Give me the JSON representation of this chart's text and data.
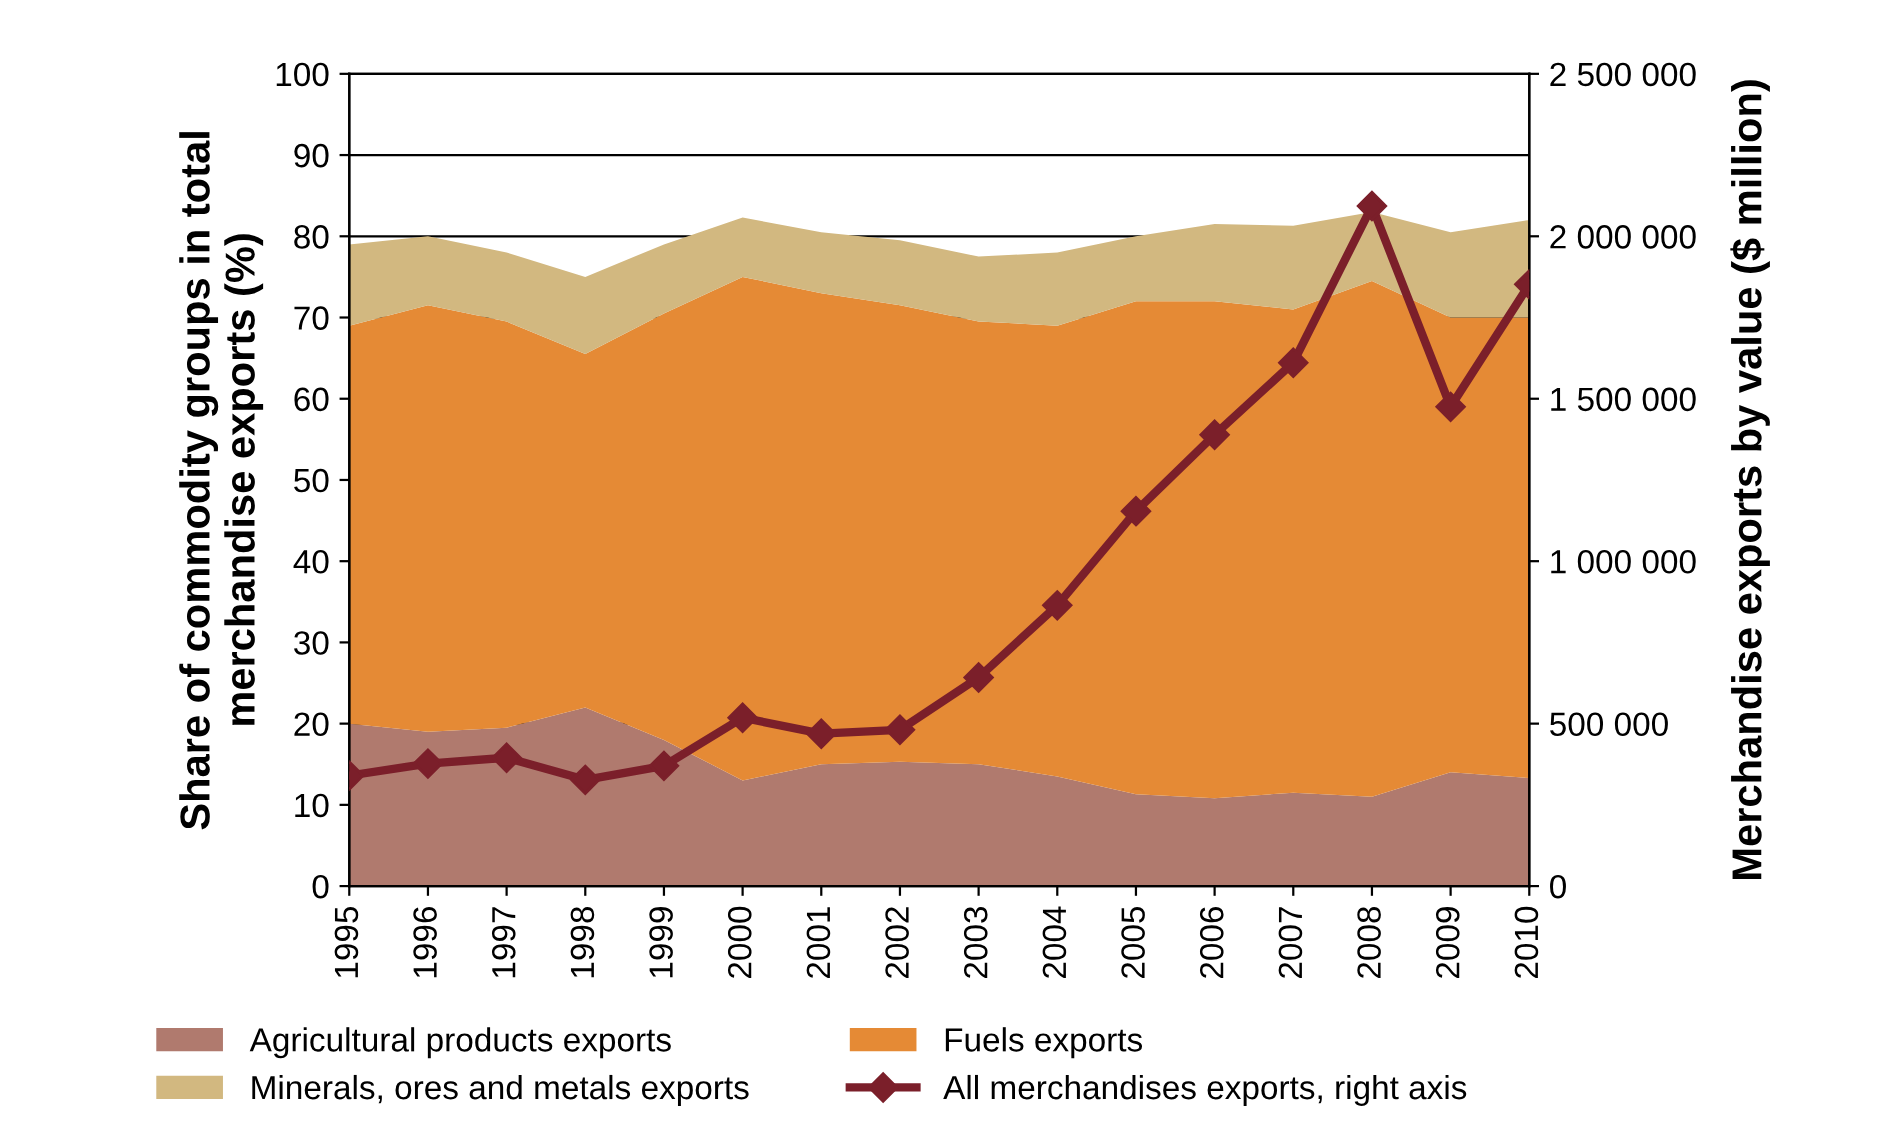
{
  "chart_data": {
    "type": "area",
    "stacked": true,
    "x": [
      1995,
      1996,
      1997,
      1998,
      1999,
      2000,
      2001,
      2002,
      2003,
      2004,
      2005,
      2006,
      2007,
      2008,
      2009,
      2010
    ],
    "xlim": [
      1995,
      2010
    ],
    "xticks": [
      1995,
      1996,
      1997,
      1998,
      1999,
      2000,
      2001,
      2002,
      2003,
      2004,
      2005,
      2006,
      2007,
      2008,
      2009,
      2010
    ],
    "ylabel": "Share of commodity groups in total merchandise exports (%)",
    "y2label": "Merchandise exports by value ($ million)",
    "ylim": [
      0,
      100
    ],
    "yticks": [
      0,
      10,
      20,
      30,
      40,
      50,
      60,
      70,
      80,
      90,
      100
    ],
    "y2lim": [
      0,
      2500000
    ],
    "y2ticks": [
      {
        "value": 0,
        "label": "0"
      },
      {
        "value": 500000,
        "label": "500 000"
      },
      {
        "value": 1000000,
        "label": "1 000 000"
      },
      {
        "value": 1500000,
        "label": "1 500 000"
      },
      {
        "value": 2000000,
        "label": "2 000 000"
      },
      {
        "value": 2500000,
        "label": "2 500 000"
      }
    ],
    "grid": "y",
    "legend": "bottom",
    "series": [
      {
        "name": "Agricultural products exports",
        "color": "#b07a6e",
        "values": [
          20,
          19,
          19.5,
          22,
          18,
          13,
          15,
          15.3,
          15,
          13.5,
          11.3,
          10.8,
          11.5,
          11,
          14,
          13.3
        ]
      },
      {
        "name": "Fuels exports",
        "color": "#e58a35",
        "values": [
          49,
          52.5,
          50,
          43.5,
          52.5,
          62,
          58,
          56.2,
          54.5,
          55.5,
          60.7,
          61.2,
          59.5,
          63.5,
          56,
          56.7
        ]
      },
      {
        "name": "Minerals, ores and metals exports",
        "color": "#d2b880",
        "values": [
          10,
          8.5,
          8.5,
          9.5,
          8.5,
          7.3,
          7.5,
          8,
          8,
          9,
          8,
          9.5,
          10.3,
          8.5,
          10.5,
          12
        ]
      },
      {
        "name": "All merchandises exports, right axis",
        "type": "line",
        "axis": "y2",
        "marker": "diamond",
        "color": "#7b1f2a",
        "values": [
          340000,
          377000,
          395000,
          327000,
          370000,
          518000,
          469000,
          481000,
          642000,
          864000,
          1154000,
          1389000,
          1611000,
          2093000,
          1475000,
          1852000
        ]
      }
    ]
  }
}
